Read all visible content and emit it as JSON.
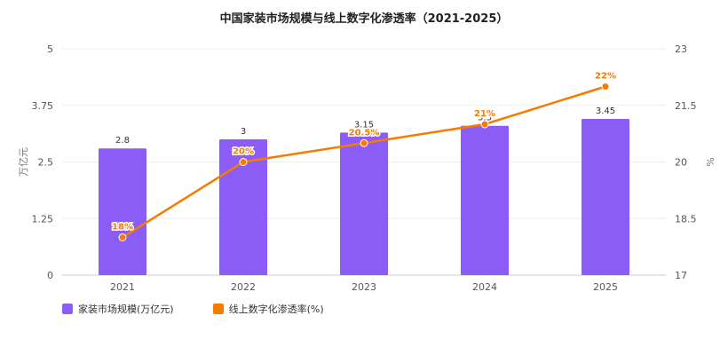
{
  "chart_data": {
    "type": "bar",
    "title": "中国家装市场规模与线上数字化渗透率（2021-2025）",
    "categories": [
      "2021",
      "2022",
      "2023",
      "2024",
      "2025"
    ],
    "series": [
      {
        "name": "家装市场规模(万亿元)",
        "type": "bar",
        "axis": "left",
        "color": "#8b5cf6",
        "values": [
          2.8,
          3,
          3.15,
          3.3,
          3.45
        ],
        "labels": [
          "2.8",
          "3",
          "3.15",
          "3.3",
          "3.45"
        ]
      },
      {
        "name": "线上数字化渗透率(%)",
        "type": "line",
        "axis": "right",
        "color": "#f57c00",
        "values": [
          18,
          20,
          20.5,
          21,
          22
        ],
        "labels": [
          "18%",
          "20%",
          "20.5%",
          "21%",
          "22%"
        ]
      }
    ],
    "y_left": {
      "label": "万亿元",
      "ylim": [
        0,
        5
      ],
      "ticks": [
        "0",
        "1.25",
        "2.5",
        "3.75",
        "5"
      ]
    },
    "y_right": {
      "label": "%",
      "ylim": [
        17,
        23
      ],
      "ticks": [
        "17",
        "18.5",
        "20",
        "21.5",
        "23"
      ]
    },
    "grid": true,
    "legend_position": "bottom-left"
  }
}
